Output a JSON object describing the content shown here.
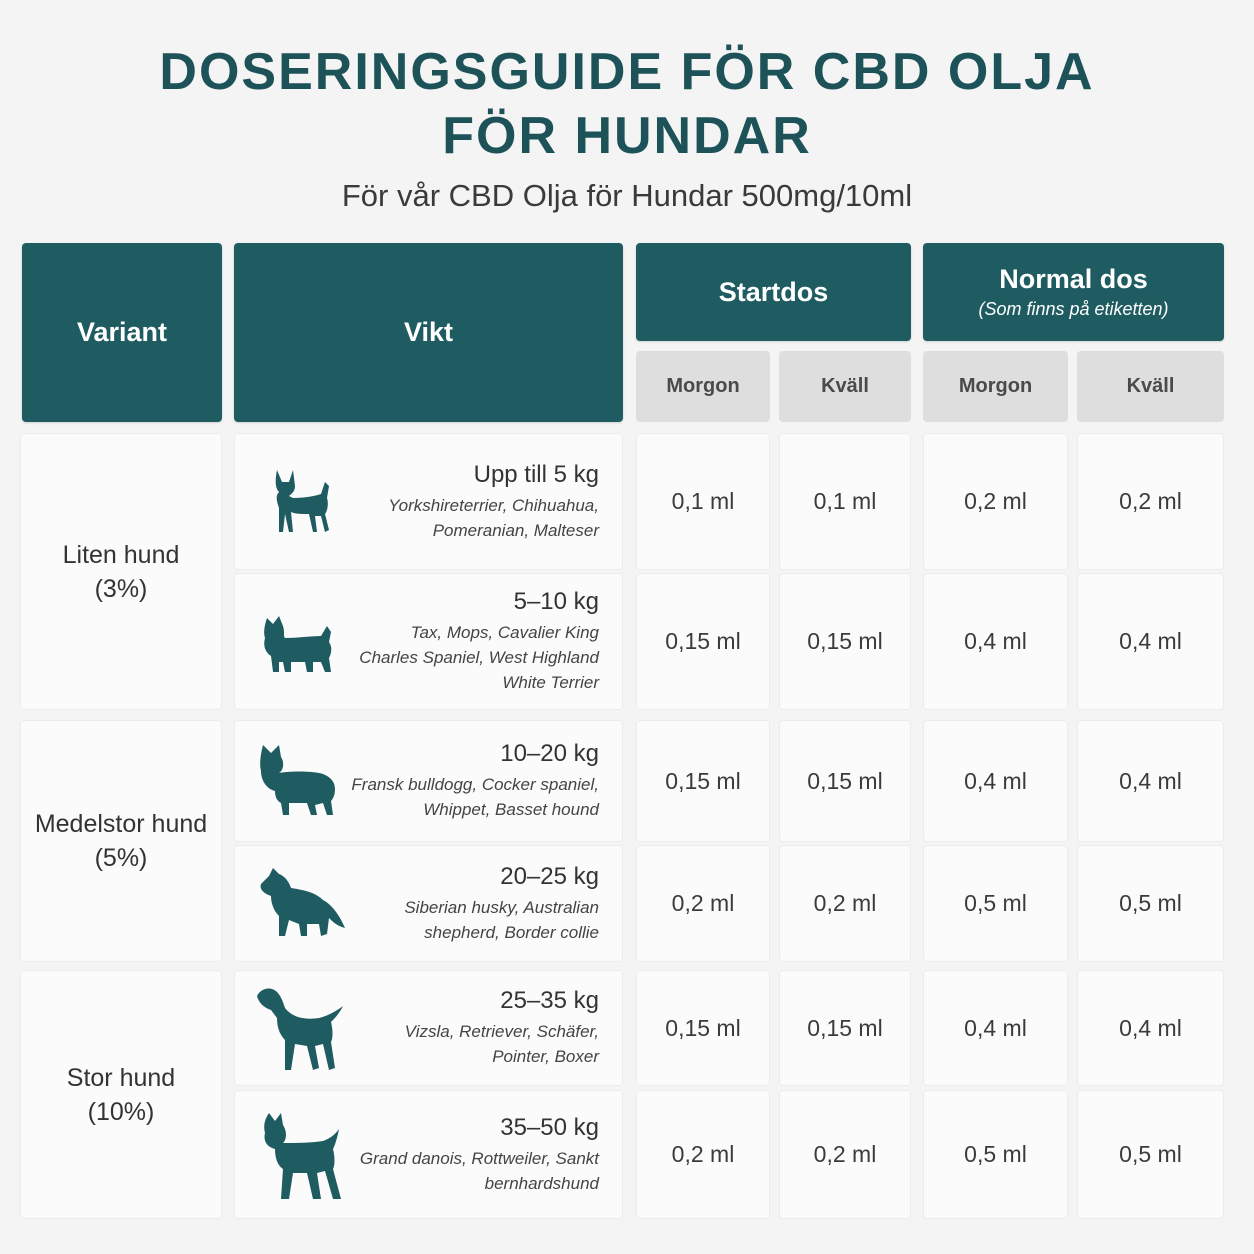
{
  "title": {
    "line1": "DOSERINGSGUIDE FÖR CBD OLJA",
    "line2": "FÖR HUNDAR"
  },
  "subtitle": "För vår CBD Olja för Hundar 500mg/10ml",
  "colors": {
    "header": "#1f5c62",
    "title": "#1d5258",
    "subheader": "#dedede"
  },
  "headers": {
    "variant": "Variant",
    "weight": "Vikt",
    "startdos": "Startdos",
    "normaldos": "Normal dos",
    "normaldos_note": "(Som finns på etiketten)",
    "morning": "Morgon",
    "evening": "Kväll"
  },
  "groups": [
    {
      "name": "Liten hund",
      "percent": "(3%)"
    },
    {
      "name": "Medelstor hund",
      "percent": "(5%)"
    },
    {
      "name": "Stor hund",
      "percent": "(10%)"
    }
  ],
  "rows": [
    {
      "weight": "Upp till 5 kg",
      "breeds": "Yorkshireterrier, Chihuahua, Pomeranian, Malteser",
      "icon": "chihuahua-icon",
      "start_morning": "0,1 ml",
      "start_evening": "0,1 ml",
      "normal_morning": "0,2 ml",
      "normal_evening": "0,2 ml"
    },
    {
      "weight": "5–10 kg",
      "breeds": "Tax, Mops, Cavalier King Charles Spaniel, West Highland White Terrier",
      "icon": "terrier-icon",
      "start_morning": "0,15 ml",
      "start_evening": "0,15 ml",
      "normal_morning": "0,4 ml",
      "normal_evening": "0,4 ml"
    },
    {
      "weight": "10–20 kg",
      "breeds": "Fransk bulldogg, Cocker spaniel, Whippet, Basset hound",
      "icon": "bulldog-icon",
      "start_morning": "0,15 ml",
      "start_evening": "0,15 ml",
      "normal_morning": "0,4 ml",
      "normal_evening": "0,4 ml"
    },
    {
      "weight": "20–25 kg",
      "breeds": "Siberian husky, Australian shepherd, Border collie",
      "icon": "collie-icon",
      "start_morning": "0,2 ml",
      "start_evening": "0,2 ml",
      "normal_morning": "0,5 ml",
      "normal_evening": "0,5 ml"
    },
    {
      "weight": "25–35 kg",
      "breeds": "Vizsla, Retriever, Schäfer, Pointer, Boxer",
      "icon": "pointer-icon",
      "start_morning": "0,15 ml",
      "start_evening": "0,15 ml",
      "normal_morning": "0,4 ml",
      "normal_evening": "0,4 ml"
    },
    {
      "weight": "35–50 kg",
      "breeds": "Grand danois, Rottweiler, Sankt bernhardshund",
      "icon": "mastiff-icon",
      "start_morning": "0,2 ml",
      "start_evening": "0,2 ml",
      "normal_morning": "0,5 ml",
      "normal_evening": "0,5 ml"
    }
  ]
}
